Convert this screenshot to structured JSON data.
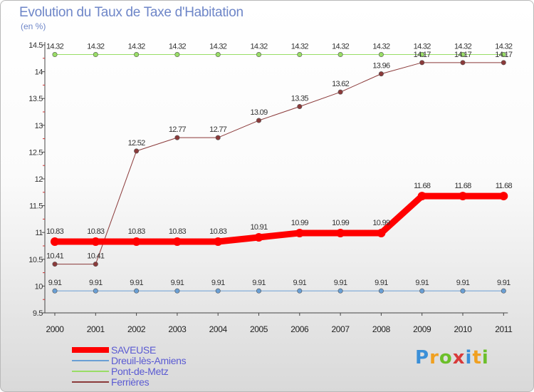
{
  "title": "Evolution du Taux de Taxe d'Habitation",
  "unit": "(en %)",
  "logo": {
    "text": "Proxiti",
    "letter_colors": [
      "#3a8fd8",
      "#f0a020",
      "#6cbf2a",
      "#d83a3a",
      "#3a8fd8",
      "#f0a020",
      "#6cbf2a"
    ]
  },
  "chart_data": {
    "type": "line",
    "title": "Evolution du Taux de Taxe d'Habitation",
    "ylabel": "(en %)",
    "xlabel": "",
    "x": [
      "2000",
      "2001",
      "2002",
      "2003",
      "2004",
      "2005",
      "2006",
      "2007",
      "2008",
      "2009",
      "2010",
      "2011"
    ],
    "ylim": [
      9.5,
      14.5
    ],
    "yticks": [
      9.5,
      10,
      10.5,
      11,
      11.5,
      12,
      12.5,
      13,
      13.5,
      14,
      14.5
    ],
    "ytick_labels": [
      "9.5",
      "10",
      "10.5",
      "11",
      "11.5",
      "12",
      "12.5",
      "13",
      "13.5",
      "14",
      "14.5"
    ],
    "grid": false,
    "legend_position": "bottom-left",
    "series": [
      {
        "name": "SAVEUSE",
        "color": "#ff0000",
        "emphasis": "thick",
        "values": [
          10.83,
          10.83,
          10.83,
          10.83,
          10.83,
          10.91,
          10.99,
          10.99,
          10.99,
          11.68,
          11.68,
          11.68
        ],
        "labels": [
          "10.83",
          "10.83",
          "10.83",
          "10.83",
          "10.83",
          "10.91",
          "10.99",
          "10.99",
          "10.99",
          "11.68",
          "11.68",
          "11.68"
        ]
      },
      {
        "name": "Dreuil-lès-Amiens",
        "color": "#6a9fd4",
        "values": [
          9.91,
          9.91,
          9.91,
          9.91,
          9.91,
          9.91,
          9.91,
          9.91,
          9.91,
          9.91,
          9.91,
          9.91
        ],
        "labels": [
          "9.91",
          "9.91",
          "9.91",
          "9.91",
          "9.91",
          "9.91",
          "9.91",
          "9.91",
          "9.91",
          "9.91",
          "9.91",
          "9.91"
        ]
      },
      {
        "name": "Pont-de-Metz",
        "color": "#99dd66",
        "values": [
          14.32,
          14.32,
          14.32,
          14.32,
          14.32,
          14.32,
          14.32,
          14.32,
          14.32,
          14.32,
          14.32,
          14.32
        ],
        "labels": [
          "14.32",
          "14.32",
          "14.32",
          "14.32",
          "14.32",
          "14.32",
          "14.32",
          "14.32",
          "14.32",
          "14.32",
          "14.32",
          "14.32"
        ]
      },
      {
        "name": "Ferrières",
        "color": "#8b3a3a",
        "values": [
          10.41,
          10.41,
          12.52,
          12.77,
          12.77,
          13.09,
          13.35,
          13.62,
          13.96,
          14.17,
          14.17,
          14.17
        ],
        "labels": [
          "10.41",
          "10.41",
          "12.52",
          "12.77",
          "12.77",
          "13.09",
          "13.35",
          "13.62",
          "13.96",
          "14.17",
          "14.17",
          "14.17"
        ]
      }
    ]
  }
}
